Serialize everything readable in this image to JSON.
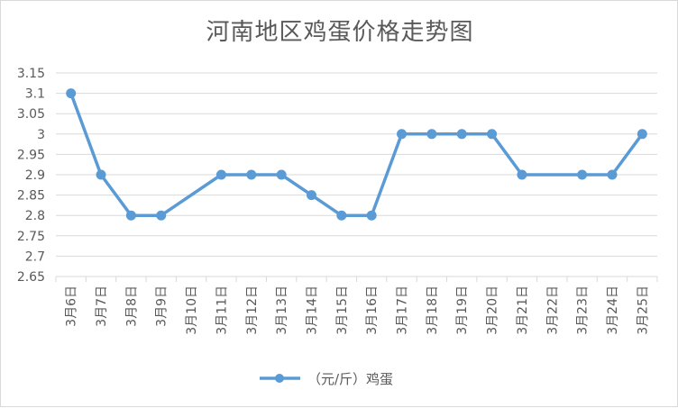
{
  "chart_data": {
    "type": "line",
    "title": "河南地区鸡蛋价格走势图",
    "categories": [
      "3月6日",
      "3月7日",
      "3月8日",
      "3月9日",
      "3月10日",
      "3月11日",
      "3月12日",
      "3月13日",
      "3月14日",
      "3月15日",
      "3月16日",
      "3月17日",
      "3月18日",
      "3月19日",
      "3月20日",
      "3月21日",
      "3月22日",
      "3月23日",
      "3月24日",
      "3月25日"
    ],
    "series": [
      {
        "name": "（元/斤）鸡蛋",
        "values": [
          3.1,
          2.9,
          2.8,
          2.8,
          null,
          2.9,
          2.9,
          2.9,
          2.85,
          2.8,
          2.8,
          3.0,
          3.0,
          3.0,
          3.0,
          2.9,
          null,
          2.9,
          2.9,
          3.0
        ]
      }
    ],
    "y_ticks": [
      "3.15",
      "3.1",
      "3.05",
      "3",
      "2.95",
      "2.9",
      "2.85",
      "2.8",
      "2.75",
      "2.7",
      "2.65"
    ],
    "ylim": [
      2.65,
      3.15
    ],
    "grid": true,
    "legend_position": "bottom",
    "colors": {
      "series": "#5b9bd5",
      "grid": "#d9d9d9",
      "text": "#595959"
    }
  }
}
